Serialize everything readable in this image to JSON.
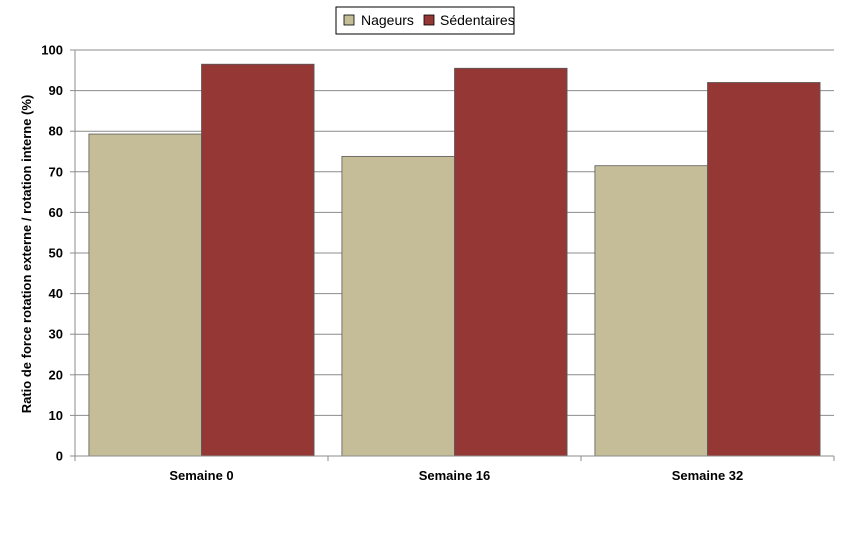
{
  "chart_data": {
    "type": "bar",
    "categories": [
      "Semaine 0",
      "Semaine 16",
      "Semaine 32"
    ],
    "series": [
      {
        "name": "Nageurs",
        "values": [
          79.3,
          73.8,
          71.5
        ],
        "color": "#c4bd97"
      },
      {
        "name": "Sédentaires",
        "values": [
          96.5,
          95.5,
          92.0
        ],
        "color": "#953735"
      }
    ],
    "ylabel": "Ratio de force rotation externe / rotation interne (%)",
    "xlabel": "",
    "ylim": [
      0,
      100
    ],
    "yticks": [
      "0",
      "10",
      "20",
      "30",
      "40",
      "50",
      "60",
      "70",
      "80",
      "90",
      "100"
    ],
    "grid": true,
    "legend": "top-center"
  }
}
